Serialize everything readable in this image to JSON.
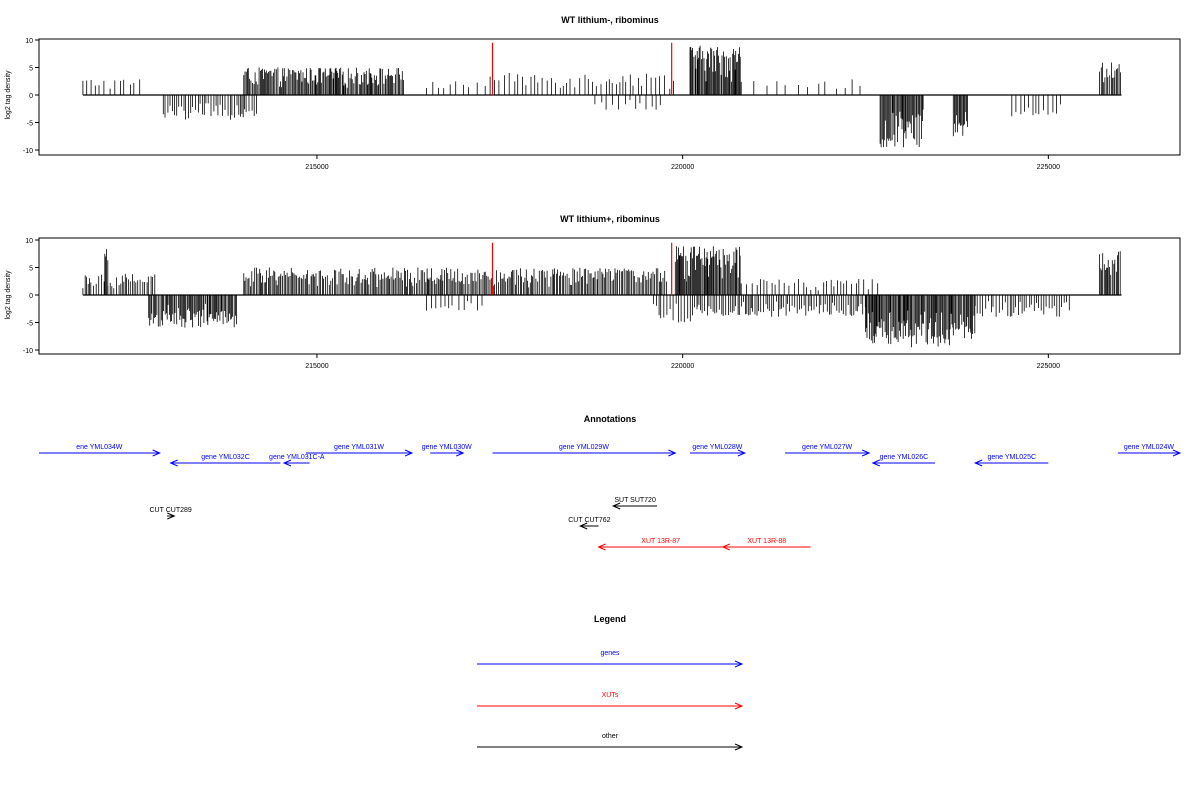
{
  "chart_data": [
    {
      "type": "bar",
      "title": "WT lithium-, ribominus",
      "xlabel": "",
      "ylabel": "log2 tag density",
      "xlim": [
        211200,
        226800
      ],
      "ylim": [
        -10,
        10
      ],
      "xticks": [
        215000,
        220000,
        225000
      ],
      "xtick_labels": [
        "215000",
        "220000",
        "225000"
      ],
      "yticks": [
        -10,
        -5,
        0,
        5,
        10
      ],
      "ytick_labels": [
        "-10",
        "-5",
        "0",
        "5",
        "10"
      ],
      "data_extent": [
        211800,
        226000
      ],
      "bar_color": "#000000",
      "marker_color": "#ff0000",
      "markers": [
        {
          "x": 217400,
          "y": 9.5
        },
        {
          "x": 219850,
          "y": 9.5
        }
      ],
      "segments": [
        {
          "start": 211800,
          "end": 212600,
          "min": 0,
          "max": 3,
          "density": 0.2
        },
        {
          "start": 212900,
          "end": 214200,
          "min": -4.5,
          "max": 0,
          "density": 0.45
        },
        {
          "start": 214000,
          "end": 216200,
          "min": 0,
          "max": 5,
          "density": 0.85
        },
        {
          "start": 216500,
          "end": 217300,
          "min": 0,
          "max": 2.5,
          "density": 0.15
        },
        {
          "start": 217300,
          "end": 219900,
          "min": 0,
          "max": 4,
          "density": 0.25
        },
        {
          "start": 218800,
          "end": 219700,
          "min": -3,
          "max": 0,
          "density": 0.2
        },
        {
          "start": 220100,
          "end": 220800,
          "min": 0,
          "max": 9,
          "density": 1.0
        },
        {
          "start": 220800,
          "end": 222500,
          "min": 0,
          "max": 3,
          "density": 0.1
        },
        {
          "start": 222700,
          "end": 223300,
          "min": -9.5,
          "max": 0,
          "density": 1.0
        },
        {
          "start": 223700,
          "end": 223900,
          "min": -7.5,
          "max": 0,
          "density": 0.9
        },
        {
          "start": 224500,
          "end": 225200,
          "min": -4,
          "max": 0,
          "density": 0.25
        },
        {
          "start": 225700,
          "end": 226000,
          "min": 0,
          "max": 6,
          "density": 0.7
        }
      ]
    },
    {
      "type": "bar",
      "title": "WT lithium+, ribominus",
      "xlabel": "",
      "ylabel": "log2 tag density",
      "xlim": [
        211200,
        226800
      ],
      "ylim": [
        -10,
        10
      ],
      "xticks": [
        215000,
        220000,
        225000
      ],
      "xtick_labels": [
        "215000",
        "220000",
        "225000"
      ],
      "yticks": [
        -10,
        -5,
        0,
        5,
        10
      ],
      "ytick_labels": [
        "-10",
        "-5",
        "0",
        "5",
        "10"
      ],
      "data_extent": [
        211800,
        226000
      ],
      "bar_color": "#000000",
      "marker_color": "#ff0000",
      "markers": [
        {
          "x": 217400,
          "y": 9.5
        },
        {
          "x": 219850,
          "y": 9.5
        }
      ],
      "segments": [
        {
          "start": 211800,
          "end": 212800,
          "min": 0,
          "max": 4,
          "density": 0.5
        },
        {
          "start": 212100,
          "end": 212150,
          "min": 0,
          "max": 9,
          "density": 1.0
        },
        {
          "start": 212700,
          "end": 213900,
          "min": -6,
          "max": 0,
          "density": 0.8
        },
        {
          "start": 214000,
          "end": 219800,
          "min": 0,
          "max": 5,
          "density": 0.7
        },
        {
          "start": 216500,
          "end": 217300,
          "min": -3,
          "max": 0,
          "density": 0.2
        },
        {
          "start": 219600,
          "end": 220200,
          "min": -5,
          "max": 0,
          "density": 0.4
        },
        {
          "start": 219900,
          "end": 220800,
          "min": 0,
          "max": 9,
          "density": 1.0
        },
        {
          "start": 220200,
          "end": 222500,
          "min": -4,
          "max": 0,
          "density": 0.5
        },
        {
          "start": 220800,
          "end": 222700,
          "min": 0,
          "max": 3,
          "density": 0.25
        },
        {
          "start": 222500,
          "end": 223700,
          "min": -9.5,
          "max": 0,
          "density": 1.0
        },
        {
          "start": 223700,
          "end": 224000,
          "min": -8,
          "max": 0,
          "density": 0.9
        },
        {
          "start": 224000,
          "end": 225300,
          "min": -4,
          "max": 0,
          "density": 0.4
        },
        {
          "start": 225700,
          "end": 226000,
          "min": 0,
          "max": 8,
          "density": 0.8
        }
      ]
    }
  ],
  "annotations": {
    "title": "Annotations",
    "xlim": [
      211200,
      226800
    ],
    "items": [
      {
        "label": "ene YML034W",
        "start": 211200,
        "end": 212850,
        "strand": "+",
        "row": 0,
        "type": "genes"
      },
      {
        "label": "gene YML032C",
        "start": 213000,
        "end": 214500,
        "strand": "-",
        "row": 1,
        "type": "genes"
      },
      {
        "label": "gene YML031C-A",
        "start": 214550,
        "end": 214900,
        "strand": "-",
        "row": 1,
        "type": "genes"
      },
      {
        "label": "gene YML031W",
        "start": 214850,
        "end": 216300,
        "strand": "+",
        "row": 0,
        "type": "genes"
      },
      {
        "label": "gene YML030W",
        "start": 216550,
        "end": 217000,
        "strand": "+",
        "row": 0,
        "type": "genes"
      },
      {
        "label": "gene YML029W",
        "start": 217400,
        "end": 219900,
        "strand": "+",
        "row": 0,
        "type": "genes"
      },
      {
        "label": "gene YML028W",
        "start": 220100,
        "end": 220850,
        "strand": "+",
        "row": 0,
        "type": "genes"
      },
      {
        "label": "gene YML027W",
        "start": 221400,
        "end": 222550,
        "strand": "+",
        "row": 0,
        "type": "genes"
      },
      {
        "label": "gene YML026C",
        "start": 222600,
        "end": 223450,
        "strand": "-",
        "row": 1,
        "type": "genes"
      },
      {
        "label": "gene YML025C",
        "start": 224000,
        "end": 225000,
        "strand": "-",
        "row": 1,
        "type": "genes"
      },
      {
        "label": "gene YML024W",
        "start": 225950,
        "end": 226800,
        "strand": "+",
        "row": 0,
        "type": "genes"
      },
      {
        "label": "CUT CUT289",
        "start": 212950,
        "end": 213050,
        "strand": "+",
        "row": 3,
        "type": "other"
      },
      {
        "label": "SUT SUT720",
        "start": 219050,
        "end": 219650,
        "strand": "-",
        "row": 2,
        "type": "other"
      },
      {
        "label": "CUT CUT762",
        "start": 218600,
        "end": 218850,
        "strand": "-",
        "row": 4,
        "type": "other"
      },
      {
        "label": "XUT 13R-87",
        "start": 218850,
        "end": 220550,
        "strand": "-",
        "row": 5,
        "type": "XUTs"
      },
      {
        "label": "XUT 13R-88",
        "start": 220550,
        "end": 221750,
        "strand": "-",
        "row": 5,
        "type": "XUTs"
      }
    ]
  },
  "legend": {
    "title": "Legend",
    "entries": [
      {
        "label": "genes",
        "color": "#0000ff"
      },
      {
        "label": "XUTs",
        "color": "#ff0000"
      },
      {
        "label": "other",
        "color": "#000000"
      }
    ]
  },
  "colors": {
    "genes": "#0000ff",
    "XUTs": "#ff0000",
    "other": "#000000"
  }
}
